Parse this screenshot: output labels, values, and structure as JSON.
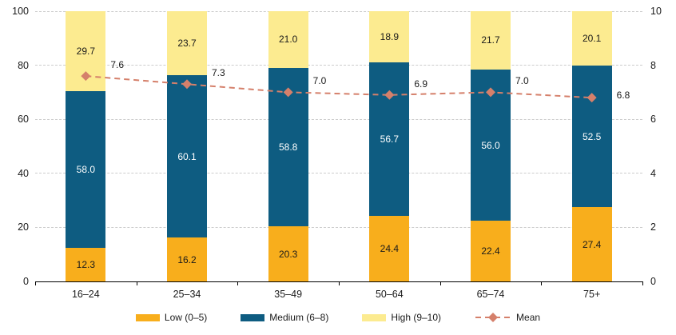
{
  "chart_data": {
    "type": "bar",
    "subtype": "stacked-bar-with-mean-line",
    "categories": [
      "16–24",
      "25–34",
      "35–49",
      "50–64",
      "65–74",
      "75+"
    ],
    "series": [
      {
        "name": "Low (0–5)",
        "color": "#F8AE1C",
        "label_color": "#1a1a1a",
        "values": [
          12.3,
          16.2,
          20.3,
          24.4,
          22.4,
          27.4
        ]
      },
      {
        "name": "Medium (6–8)",
        "color": "#0E5C81",
        "label_color": "#ffffff",
        "values": [
          58.0,
          60.1,
          58.8,
          56.7,
          56.0,
          52.5
        ]
      },
      {
        "name": "High (9–10)",
        "color": "#FCEB90",
        "label_color": "#1a1a1a",
        "values": [
          29.7,
          23.7,
          21.0,
          18.9,
          21.7,
          20.1
        ]
      }
    ],
    "line_series": {
      "name": "Mean",
      "color": "#D5806B",
      "values": [
        7.6,
        7.3,
        7.0,
        6.9,
        7.0,
        6.8
      ]
    },
    "left_axis": {
      "ticks": [
        "0",
        "20",
        "40",
        "60",
        "80",
        "100"
      ],
      "range": [
        0,
        100
      ]
    },
    "right_axis": {
      "ticks": [
        "0",
        "2",
        "4",
        "6",
        "8",
        "10"
      ],
      "range": [
        0,
        10
      ]
    },
    "legend": [
      "Low (0–5)",
      "Medium (6–8)",
      "High (9–10)",
      "Mean"
    ],
    "grid": "horizontal-dashed",
    "legend_position": "bottom-center",
    "colors": {
      "low": "#F8AE1C",
      "medium": "#0E5C81",
      "high": "#FCEB90",
      "mean_line": "#D5806B",
      "gridline": "#cccccc",
      "axis": "#000000",
      "text": "#1a1a1a"
    }
  }
}
